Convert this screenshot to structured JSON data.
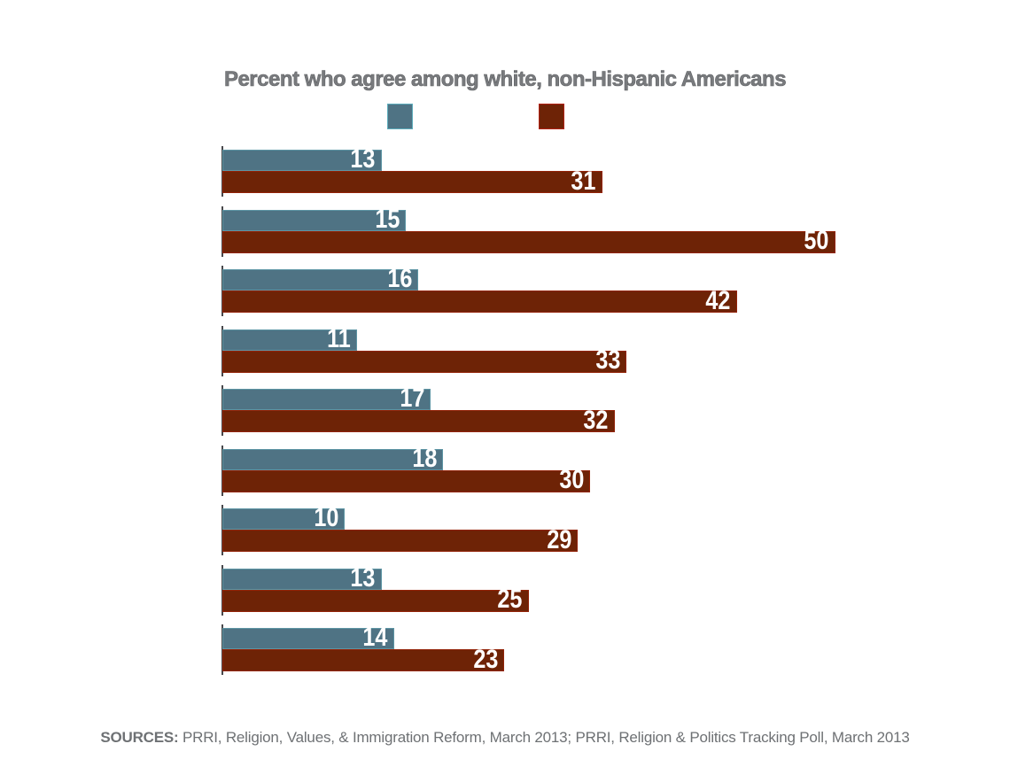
{
  "title": "Percent who agree among white, non-Hispanic Americans",
  "sources": {
    "label": "SOURCES:",
    "text": " PRRI, Religion, Values, & Immigration Reform, March 2013; PRRI, Religion & Politics Tracking Poll, March 2013"
  },
  "colors": {
    "blue_series": "#4f7384",
    "red_series": "#6e2306",
    "title_gray": "#797b7e",
    "sources_gray": "#6e7174",
    "value_label": "#ffffff"
  },
  "legend": {
    "position": "top",
    "labels_visible": false,
    "swatches": [
      {
        "name": "blue-swatch",
        "color": "#4f7384"
      },
      {
        "name": "red-swatch",
        "color": "#6e2306"
      }
    ]
  },
  "chart_data": {
    "type": "bar",
    "orientation": "horizontal",
    "title": "Percent who agree among white, non-Hispanic Americans",
    "xlabel": "",
    "ylabel": "",
    "xlim": [
      0,
      50
    ],
    "axis_tick_labels_visible": false,
    "category_labels_visible": false,
    "value_labels_shown": true,
    "grid": false,
    "categories": [
      "",
      "",
      "",
      "",
      "",
      "",
      "",
      "",
      ""
    ],
    "series": [
      {
        "name": "blue-series",
        "color": "#4f7384",
        "values": [
          13,
          15,
          16,
          11,
          17,
          18,
          10,
          13,
          14
        ]
      },
      {
        "name": "red-series",
        "color": "#6e2306",
        "values": [
          31,
          50,
          42,
          33,
          32,
          30,
          29,
          25,
          23
        ]
      }
    ]
  }
}
